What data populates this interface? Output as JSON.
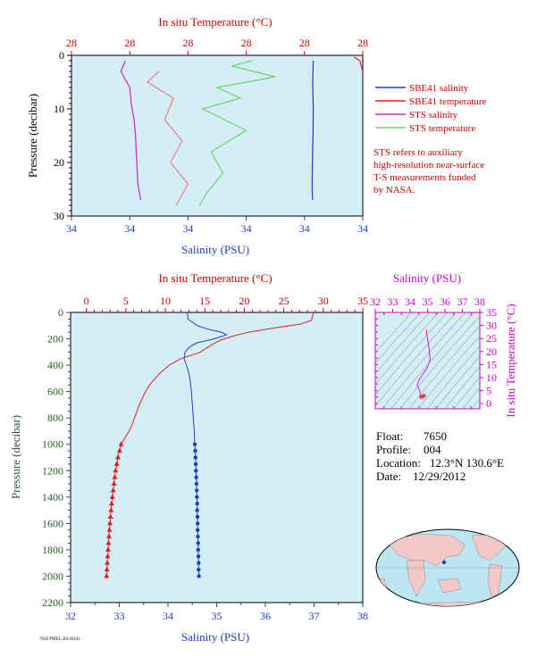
{
  "chart_data": [
    {
      "type": "line",
      "name": "near-surface panel",
      "top_axis_title": "In situ Temperature (°C)",
      "bottom_axis_title": "Salinity (PSU)",
      "left_axis_title": "Pressure (decibar)",
      "top_ticks": [
        "28",
        "28",
        "28",
        "28",
        "28",
        "28"
      ],
      "bottom_ticks": [
        "34",
        "34",
        "34",
        "34",
        "34",
        "34"
      ],
      "left_ticks": [
        "0",
        "10",
        "20",
        "30"
      ],
      "ylim": [
        30,
        0
      ],
      "grid": false,
      "legend": {
        "placement": "right",
        "entries": [
          {
            "label": "SBE41 salinity",
            "color": "#1f3fbf"
          },
          {
            "label": "SBE41 temperature",
            "color": "#e02020"
          },
          {
            "label": "STS salinity",
            "color": "#d020d0"
          },
          {
            "label": "STS temperature",
            "color": "#70d070"
          }
        ]
      },
      "note": [
        "STS refers to auxiliary",
        "high-resolution near-surface",
        "T-S measurements funded",
        "by NASA."
      ],
      "series": [
        {
          "name": "SBE41 salinity",
          "color": "#1f3fbf",
          "pressure": [
            1,
            5,
            10,
            15,
            20,
            25,
            27
          ],
          "value_frac": [
            0.83,
            0.828,
            0.83,
            0.829,
            0.827,
            0.826,
            0.828
          ]
        },
        {
          "name": "SBE41 temperature",
          "color": "#e02020",
          "pressure": [
            0.3,
            1,
            3
          ],
          "value_frac": [
            0.97,
            0.99,
            1.0
          ]
        },
        {
          "name": "STS salinity",
          "color": "#d020d0",
          "pressure": [
            1,
            3,
            6,
            9,
            12,
            15,
            18,
            21,
            24,
            27
          ],
          "value_frac": [
            0.185,
            0.17,
            0.2,
            0.205,
            0.215,
            0.22,
            0.222,
            0.225,
            0.228,
            0.238
          ]
        },
        {
          "name": "STS temperature",
          "color": "#70d070",
          "pressure": [
            1,
            2,
            4,
            6,
            8,
            10,
            14,
            18,
            22,
            26,
            28
          ],
          "value_frac": [
            0.62,
            0.55,
            0.7,
            0.5,
            0.58,
            0.45,
            0.6,
            0.48,
            0.52,
            0.46,
            0.44
          ]
        },
        {
          "name": "STS temperature (pink)",
          "color": "#f08080",
          "pressure": [
            3,
            5,
            8,
            12,
            16,
            20,
            24,
            28
          ],
          "value_frac": [
            0.3,
            0.26,
            0.35,
            0.32,
            0.38,
            0.34,
            0.4,
            0.36
          ]
        }
      ]
    },
    {
      "type": "line",
      "name": "deep profile",
      "top_axis_title": "In situ Temperature (°C)",
      "bottom_axis_title": "Salinity (PSU)",
      "left_axis_title": "Pressure (decibar)",
      "temperature_ticks": [
        "0",
        "5",
        "10",
        "15",
        "20",
        "25",
        "30",
        "35"
      ],
      "salinity_ticks": [
        "32",
        "33",
        "34",
        "35",
        "36",
        "37",
        "38"
      ],
      "pressure_ticks": [
        "0",
        "200",
        "400",
        "600",
        "800",
        "1000",
        "1200",
        "1400",
        "1600",
        "1800",
        "2000",
        "2200"
      ],
      "xlim_temperature": [
        -2,
        35
      ],
      "xlim_salinity": [
        32,
        38
      ],
      "ylim": [
        2200,
        0
      ],
      "grid": false,
      "temperature": {
        "color": "#e02020",
        "pressure": [
          0,
          20,
          60,
          90,
          120,
          150,
          180,
          210,
          240,
          270,
          300,
          350,
          400,
          450,
          500,
          550,
          600,
          650,
          700,
          750,
          800,
          850,
          900,
          950,
          1000,
          1050,
          1100,
          1150,
          1200,
          1250,
          1300,
          1350,
          1400,
          1450,
          1500,
          1550,
          1600,
          1650,
          1700,
          1750,
          1800,
          1850,
          1900,
          1950,
          2000
        ],
        "values": [
          28.7,
          28.7,
          28.5,
          27.0,
          23.5,
          20.5,
          18.5,
          17.0,
          16.0,
          15.2,
          14.5,
          12.0,
          10.5,
          9.5,
          8.7,
          8.0,
          7.5,
          7.1,
          6.7,
          6.4,
          6.1,
          5.8,
          5.4,
          4.9,
          4.4,
          4.2,
          4.0,
          3.85,
          3.7,
          3.6,
          3.5,
          3.4,
          3.3,
          3.2,
          3.12,
          3.05,
          2.98,
          2.92,
          2.86,
          2.8,
          2.75,
          2.7,
          2.65,
          2.6,
          2.56
        ]
      },
      "salinity": {
        "color": "#1f3fbf",
        "pressure": [
          0,
          50,
          100,
          130,
          150,
          170,
          200,
          230,
          260,
          300,
          350,
          400,
          450,
          500,
          600,
          700,
          800,
          900,
          1000,
          1050,
          1100,
          1150,
          1200,
          1250,
          1300,
          1350,
          1400,
          1450,
          1500,
          1550,
          1600,
          1650,
          1700,
          1750,
          1800,
          1850,
          1900,
          1950,
          2000
        ],
        "values": [
          34.4,
          34.41,
          34.6,
          34.85,
          35.1,
          35.2,
          34.95,
          34.6,
          34.45,
          34.35,
          34.33,
          34.38,
          34.42,
          34.45,
          34.48,
          34.5,
          34.52,
          34.54,
          34.55,
          34.56,
          34.565,
          34.57,
          34.575,
          34.58,
          34.585,
          34.59,
          34.595,
          34.6,
          34.6,
          34.605,
          34.61,
          34.61,
          34.615,
          34.62,
          34.62,
          34.625,
          34.63,
          34.63,
          34.635
        ]
      }
    },
    {
      "type": "line",
      "name": "T-S diagram",
      "top_axis_title": "Salinity (PSU)",
      "right_axis_title": "In situ Temperature (°C)",
      "salinity_ticks": [
        "32",
        "33",
        "34",
        "35",
        "36",
        "37",
        "38"
      ],
      "temperature_ticks": [
        "0",
        "5",
        "10",
        "15",
        "20",
        "25",
        "30",
        "35"
      ],
      "xlim": [
        32,
        38
      ],
      "ylim": [
        -2,
        35
      ],
      "density_contours": true,
      "series": [
        {
          "name": "STS salinity",
          "color": "#d020d0",
          "salinity": [
            34.95,
            34.95,
            35.0,
            35.05,
            35.1,
            35.15,
            35.0,
            34.7,
            34.5,
            34.4,
            34.55,
            34.6
          ],
          "temperature": [
            28.5,
            27,
            25,
            23,
            20,
            17,
            14,
            11,
            9,
            7,
            5,
            3
          ]
        }
      ]
    }
  ],
  "info": {
    "float_label": "Float:",
    "float": "7650",
    "profile_label": "Profile:",
    "profile": "004",
    "location_label": "Location:",
    "location": "12.3°N  130.6°E",
    "date_label": "Date:",
    "date": "12/29/2012"
  },
  "footer": "7650 PMEL 20130103",
  "map": {
    "ocean_color": "#bde6f5",
    "land_color": "#f2c8c8",
    "marker_color": "#1f3fbf"
  }
}
